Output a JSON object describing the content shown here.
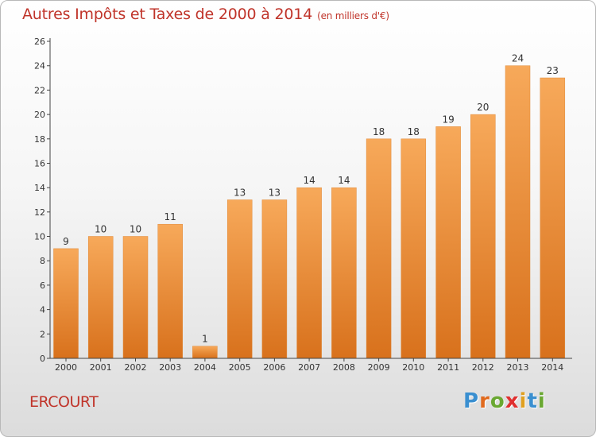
{
  "title": "Autres Impôts et Taxes de 2000 à 2014",
  "unit": "(en milliers d'€)",
  "commune": "ERCOURT",
  "logo": {
    "text": "Proxiti",
    "letter_colors": [
      "#3a8fd0",
      "#e06a1e",
      "#6aa832",
      "#e03030",
      "#e0a020",
      "#3a8fd0",
      "#6aa832"
    ]
  },
  "colors": {
    "title": "#c0342a",
    "bar_light": "#f6a654",
    "bar_dark": "#d9731d",
    "axis": "#444444",
    "label": "#333333"
  },
  "chart_data": {
    "type": "bar",
    "categories": [
      "2000",
      "2001",
      "2002",
      "2003",
      "2004",
      "2005",
      "2006",
      "2007",
      "2008",
      "2009",
      "2010",
      "2011",
      "2012",
      "2013",
      "2014"
    ],
    "values": [
      9,
      10,
      10,
      11,
      1,
      13,
      13,
      14,
      14,
      18,
      18,
      19,
      20,
      24,
      23
    ],
    "ylim": [
      0,
      26
    ],
    "yticks": [
      0,
      2,
      4,
      6,
      8,
      10,
      12,
      14,
      16,
      18,
      20,
      22,
      24,
      26
    ],
    "grid": false,
    "data_labels": true
  }
}
